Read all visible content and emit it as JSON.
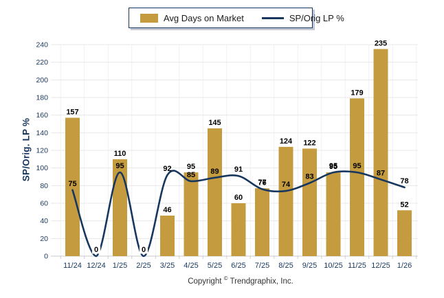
{
  "legend": {
    "bar_label": "Avg Days on Market",
    "line_label": "SP/Orig LP %"
  },
  "y_axis_title": "SP/Orig. LP %",
  "footer": {
    "copyright_prefix": "Copyright",
    "copyright_symbol": "©",
    "copyright_suffix": "Trendgraphix, Inc."
  },
  "colors": {
    "bar": "#C49C3F",
    "line": "#17375E",
    "axis_text": "#17365D",
    "value_label": "#000000",
    "gridline": "#E7E7E7",
    "gridline_vertical": "#F1F1F1",
    "baseline": "#C8C8C8"
  },
  "chart_data": {
    "type": "bar",
    "subtype": "combo bar + smooth line, value labels on both series",
    "categories": [
      "11/24",
      "12/24",
      "1/25",
      "2/25",
      "3/25",
      "4/25",
      "5/25",
      "6/25",
      "7/25",
      "8/25",
      "9/25",
      "10/25",
      "11/25",
      "12/25",
      "1/26"
    ],
    "series": [
      {
        "name": "Avg Days on Market",
        "type": "bar",
        "color": "#C49C3F",
        "values": [
          157,
          0,
          110,
          0,
          46,
          95,
          145,
          60,
          77,
          124,
          122,
          95,
          179,
          235,
          52
        ]
      },
      {
        "name": "SP/Orig LP %",
        "type": "line",
        "color": "#17375E",
        "values": [
          75,
          0,
          95,
          0,
          92,
          85,
          89,
          91,
          76,
          74,
          83,
          95,
          95,
          87,
          78
        ]
      }
    ],
    "xlabel": "",
    "ylabel": "SP/Orig. LP %",
    "ylim": [
      0,
      240
    ],
    "ytick_step": 20,
    "grid": "horizontal light gray every 20, faint vertical category separators",
    "legend_position": "top-center"
  }
}
